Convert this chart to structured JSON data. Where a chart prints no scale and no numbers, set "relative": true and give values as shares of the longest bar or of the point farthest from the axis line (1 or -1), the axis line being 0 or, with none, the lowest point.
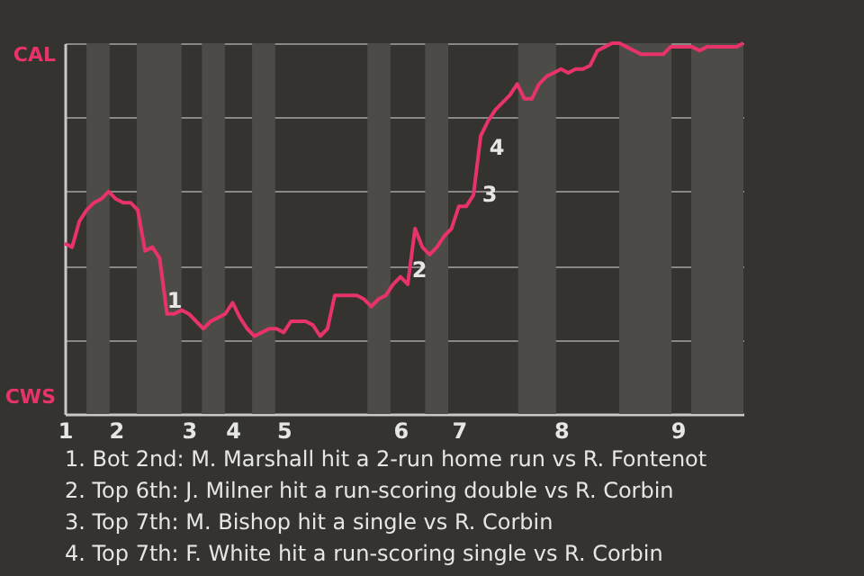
{
  "chart_data": {
    "type": "line",
    "relative": true,
    "categories": [
      "1",
      null,
      null,
      null,
      null,
      null,
      null,
      "2",
      null,
      null,
      null,
      null,
      null,
      null,
      null,
      null,
      null,
      "3",
      null,
      null,
      null,
      null,
      null,
      "4",
      null,
      null,
      null,
      null,
      null,
      null,
      "5",
      null,
      null,
      null,
      null,
      null,
      null,
      null,
      null,
      null,
      null,
      null,
      null,
      null,
      null,
      null,
      "6",
      null,
      null,
      null,
      null,
      null,
      null,
      null,
      "7",
      null,
      null,
      null,
      null,
      null,
      null,
      null,
      null,
      null,
      null,
      null,
      null,
      null,
      "8",
      null,
      null,
      null,
      null,
      null,
      null,
      null,
      null,
      null,
      null,
      null,
      null,
      null,
      null,
      null,
      "9",
      null,
      null,
      null,
      null,
      null,
      null,
      null,
      null,
      null
    ],
    "series": [
      {
        "color": "#e8336a",
        "values": [
          0.46,
          0.45,
          0.52,
          0.55,
          0.57,
          0.58,
          0.6,
          0.58,
          0.57,
          0.57,
          0.55,
          0.44,
          0.45,
          0.42,
          0.27,
          0.27,
          0.28,
          0.27,
          0.25,
          0.23,
          0.25,
          0.26,
          0.27,
          0.3,
          0.26,
          0.23,
          0.21,
          0.22,
          0.23,
          0.23,
          0.22,
          0.25,
          0.25,
          0.25,
          0.24,
          0.21,
          0.23,
          0.32,
          0.32,
          0.32,
          0.32,
          0.31,
          0.29,
          0.31,
          0.32,
          0.35,
          0.37,
          0.35,
          0.5,
          0.45,
          0.43,
          0.45,
          0.48,
          0.5,
          0.56,
          0.56,
          0.59,
          0.75,
          0.79,
          0.82,
          0.84,
          0.86,
          0.89,
          0.85,
          0.85,
          0.89,
          0.91,
          0.92,
          0.93,
          0.92,
          0.93,
          0.93,
          0.94,
          0.98,
          0.99,
          1.0,
          1.0,
          0.99,
          0.98,
          0.97,
          0.97,
          0.97,
          0.97,
          0.99,
          0.99,
          0.99,
          0.99,
          0.98,
          0.99,
          0.99,
          0.99,
          0.99,
          0.99,
          1.0
        ]
      }
    ],
    "grid": "y",
    "annotations": [
      "CAL",
      "CWS",
      "1",
      "2",
      "3",
      "4",
      "1. Bot 2nd: M. Marshall hit a 2-run home run vs R. Fontenot",
      "2. Top 6th: J. Milner hit a run-scoring double vs R. Corbin",
      "3. Top 7th: M. Bishop hit a single vs R. Corbin",
      "4. Top 7th: F. White hit a run-scoring single vs R. Corbin"
    ]
  }
}
